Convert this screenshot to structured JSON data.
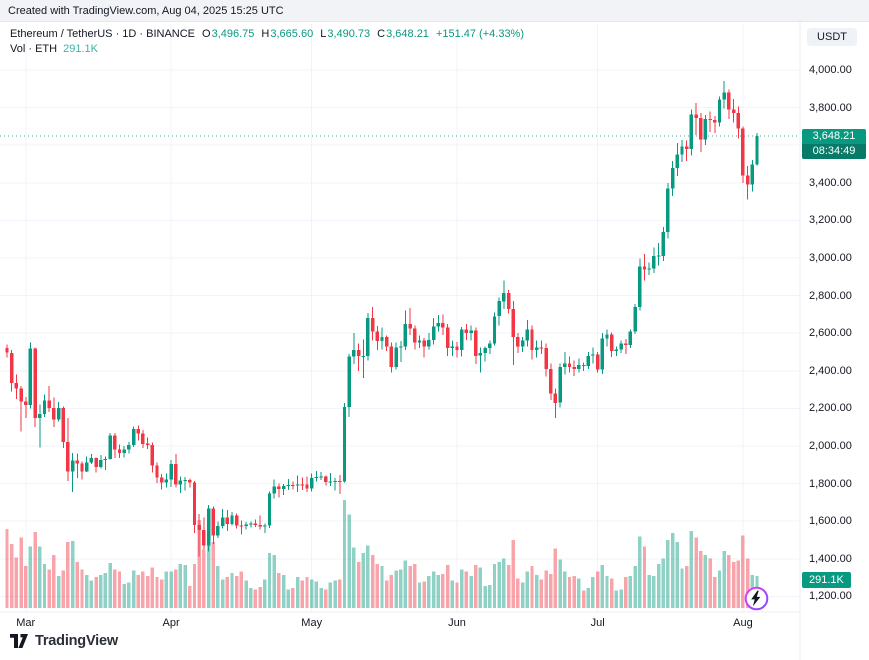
{
  "attribution": "Created with TradingView.com, Aug 04, 2025 15:25 UTC",
  "legend": {
    "title": "Ethereum / TetherUS · 1D · BINANCE",
    "ohlc": [
      {
        "k": "O",
        "v": "3,496.75"
      },
      {
        "k": "H",
        "v": "3,665.60"
      },
      {
        "k": "L",
        "v": "3,490.73"
      },
      {
        "k": "C",
        "v": "3,648.21"
      }
    ],
    "change": "+151.47 (+4.33%)",
    "volume_label": "Vol · ETH",
    "volume_value": "291.1K"
  },
  "axis": {
    "currency": "USDT"
  },
  "price_badge": {
    "price": "3,648.21",
    "countdown": "08:34:49"
  },
  "volume_badge": "291.1K",
  "footer": {
    "logo_text": "TradingView"
  },
  "icons": {
    "bolt": "lightning-bolt",
    "logo": "tradingview-mark"
  },
  "chart_data": {
    "type": "candlestick",
    "symbol": "Ethereum / TetherUS",
    "interval": "1D",
    "exchange": "BINANCE",
    "start_date": "2025-02-25",
    "price_line": 3648.21,
    "last_candle": {
      "open": 3496.75,
      "high": 3665.6,
      "low": 3490.73,
      "close": 3648.21,
      "volume": "291.1K",
      "change": "+151.47 (+4.33%)"
    },
    "colors": {
      "up": "#089981",
      "down": "#f23645",
      "volume_up": "rgba(8,153,129,0.45)",
      "volume_down": "rgba(242,54,69,0.45)"
    },
    "y_axis": {
      "min": 1200,
      "max": 4000,
      "step": 200,
      "ticks": [
        {
          "value": 4000,
          "label": "4,000.00"
        },
        {
          "value": 3800,
          "label": "3,800.00"
        },
        {
          "value": 3600,
          "label": "3,600.00"
        },
        {
          "value": 3400,
          "label": "3,400.00"
        },
        {
          "value": 3200,
          "label": "3,200.00"
        },
        {
          "value": 3000,
          "label": "3,000.00"
        },
        {
          "value": 2800,
          "label": "2,800.00"
        },
        {
          "value": 2600,
          "label": "2,600.00"
        },
        {
          "value": 2400,
          "label": "2,400.00"
        },
        {
          "value": 2200,
          "label": "2,200.00"
        },
        {
          "value": 2000,
          "label": "2,000.00"
        },
        {
          "value": 1800,
          "label": "1,800.00"
        },
        {
          "value": 1600,
          "label": "1,600.00"
        },
        {
          "value": 1400,
          "label": "1,400.00"
        },
        {
          "value": 1200,
          "label": "1,200.00"
        }
      ]
    },
    "x_axis": {
      "ticks": [
        {
          "label": "Mar",
          "index": 4
        },
        {
          "label": "Apr",
          "index": 35
        },
        {
          "label": "May",
          "index": 65
        },
        {
          "label": "Jun",
          "index": 96
        },
        {
          "label": "Jul",
          "index": 126
        },
        {
          "label": "Aug",
          "index": 157
        }
      ]
    },
    "candles_format": [
      "open",
      "high",
      "low",
      "close",
      "volume_k"
    ],
    "candles": [
      [
        2520,
        2540,
        2470,
        2496,
        720
      ],
      [
        2496,
        2510,
        2290,
        2336,
        580
      ],
      [
        2336,
        2380,
        2250,
        2306,
        460
      ],
      [
        2306,
        2320,
        2076,
        2238,
        640
      ],
      [
        2238,
        2260,
        2150,
        2218,
        380
      ],
      [
        2218,
        2550,
        2200,
        2518,
        560
      ],
      [
        2518,
        2523,
        2100,
        2149,
        690
      ],
      [
        2149,
        2222,
        1993,
        2171,
        560
      ],
      [
        2171,
        2273,
        2155,
        2241,
        400
      ],
      [
        2241,
        2319,
        2180,
        2202,
        350
      ],
      [
        2202,
        2258,
        2102,
        2141,
        480
      ],
      [
        2141,
        2235,
        2130,
        2203,
        290
      ],
      [
        2203,
        2211,
        1989,
        2020,
        340
      ],
      [
        2020,
        2149,
        1813,
        1865,
        600
      ],
      [
        1865,
        1963,
        1754,
        1924,
        610
      ],
      [
        1924,
        1960,
        1829,
        1908,
        420
      ],
      [
        1908,
        1917,
        1821,
        1864,
        350
      ],
      [
        1864,
        1945,
        1861,
        1911,
        300
      ],
      [
        1911,
        1957,
        1903,
        1937,
        250
      ],
      [
        1937,
        1940,
        1860,
        1887,
        280
      ],
      [
        1887,
        1952,
        1879,
        1926,
        300
      ],
      [
        1926,
        1944,
        1872,
        1930,
        320
      ],
      [
        1930,
        2069,
        1928,
        2056,
        410
      ],
      [
        2056,
        2070,
        1937,
        1982,
        350
      ],
      [
        1982,
        2009,
        1936,
        1964,
        330
      ],
      [
        1964,
        2001,
        1940,
        1981,
        220
      ],
      [
        1981,
        2022,
        1959,
        2006,
        230
      ],
      [
        2006,
        2103,
        1996,
        2090,
        340
      ],
      [
        2090,
        2109,
        2030,
        2066,
        300
      ],
      [
        2066,
        2085,
        1990,
        2012,
        330
      ],
      [
        2012,
        2045,
        1985,
        2004,
        290
      ],
      [
        2004,
        2018,
        1860,
        1896,
        370
      ],
      [
        1896,
        1912,
        1802,
        1833,
        280
      ],
      [
        1833,
        1850,
        1768,
        1807,
        260
      ],
      [
        1807,
        1853,
        1780,
        1823,
        330
      ],
      [
        1823,
        1926,
        1781,
        1905,
        330
      ],
      [
        1905,
        1957,
        1780,
        1795,
        350
      ],
      [
        1795,
        1839,
        1751,
        1817,
        400
      ],
      [
        1817,
        1836,
        1762,
        1818,
        390
      ],
      [
        1818,
        1827,
        1780,
        1806,
        200
      ],
      [
        1806,
        1813,
        1538,
        1580,
        400
      ],
      [
        1580,
        1639,
        1411,
        1553,
        800
      ],
      [
        1553,
        1620,
        1449,
        1471,
        530
      ],
      [
        1471,
        1687,
        1440,
        1667,
        760
      ],
      [
        1667,
        1678,
        1479,
        1523,
        600
      ],
      [
        1523,
        1598,
        1511,
        1575,
        380
      ],
      [
        1575,
        1666,
        1560,
        1620,
        260
      ],
      [
        1620,
        1659,
        1547,
        1586,
        280
      ],
      [
        1586,
        1650,
        1576,
        1630,
        320
      ],
      [
        1630,
        1642,
        1561,
        1577,
        290
      ],
      [
        1577,
        1604,
        1528,
        1574,
        330
      ],
      [
        1574,
        1596,
        1557,
        1583,
        250
      ],
      [
        1583,
        1599,
        1567,
        1588,
        180
      ],
      [
        1588,
        1608,
        1570,
        1581,
        170
      ],
      [
        1581,
        1629,
        1556,
        1572,
        190
      ],
      [
        1572,
        1589,
        1536,
        1577,
        260
      ],
      [
        1577,
        1757,
        1565,
        1747,
        500
      ],
      [
        1747,
        1823,
        1720,
        1785,
        480
      ],
      [
        1785,
        1800,
        1726,
        1770,
        320
      ],
      [
        1770,
        1798,
        1740,
        1786,
        300
      ],
      [
        1786,
        1824,
        1765,
        1793,
        170
      ],
      [
        1793,
        1810,
        1768,
        1790,
        180
      ],
      [
        1790,
        1843,
        1754,
        1796,
        280
      ],
      [
        1796,
        1833,
        1766,
        1795,
        250
      ],
      [
        1795,
        1837,
        1755,
        1775,
        280
      ],
      [
        1775,
        1855,
        1759,
        1830,
        260
      ],
      [
        1830,
        1868,
        1810,
        1834,
        240
      ],
      [
        1834,
        1861,
        1818,
        1837,
        180
      ],
      [
        1837,
        1844,
        1791,
        1808,
        170
      ],
      [
        1808,
        1857,
        1788,
        1810,
        230
      ],
      [
        1810,
        1830,
        1762,
        1815,
        250
      ],
      [
        1815,
        1845,
        1745,
        1812,
        260
      ],
      [
        1812,
        2230,
        1805,
        2207,
        980
      ],
      [
        2207,
        2490,
        2155,
        2476,
        850
      ],
      [
        2476,
        2600,
        2435,
        2510,
        550
      ],
      [
        2510,
        2545,
        2400,
        2478,
        420
      ],
      [
        2478,
        2567,
        2362,
        2480,
        500
      ],
      [
        2480,
        2707,
        2455,
        2680,
        570
      ],
      [
        2680,
        2740,
        2560,
        2610,
        480
      ],
      [
        2610,
        2638,
        2510,
        2558,
        400
      ],
      [
        2558,
        2629,
        2513,
        2580,
        380
      ],
      [
        2580,
        2589,
        2505,
        2530,
        250
      ],
      [
        2530,
        2550,
        2392,
        2420,
        300
      ],
      [
        2420,
        2550,
        2408,
        2525,
        340
      ],
      [
        2525,
        2559,
        2446,
        2530,
        350
      ],
      [
        2530,
        2720,
        2510,
        2650,
        430
      ],
      [
        2650,
        2735,
        2590,
        2625,
        380
      ],
      [
        2625,
        2640,
        2512,
        2550,
        400
      ],
      [
        2550,
        2587,
        2520,
        2560,
        230
      ],
      [
        2560,
        2575,
        2471,
        2530,
        240
      ],
      [
        2530,
        2600,
        2513,
        2565,
        290
      ],
      [
        2565,
        2680,
        2540,
        2635,
        330
      ],
      [
        2635,
        2698,
        2610,
        2655,
        300
      ],
      [
        2655,
        2700,
        2590,
        2630,
        310
      ],
      [
        2630,
        2648,
        2478,
        2522,
        390
      ],
      [
        2522,
        2560,
        2480,
        2530,
        250
      ],
      [
        2530,
        2553,
        2470,
        2510,
        230
      ],
      [
        2510,
        2633,
        2475,
        2620,
        350
      ],
      [
        2620,
        2650,
        2565,
        2600,
        330
      ],
      [
        2600,
        2640,
        2560,
        2615,
        290
      ],
      [
        2615,
        2629,
        2436,
        2480,
        390
      ],
      [
        2480,
        2525,
        2390,
        2495,
        370
      ],
      [
        2495,
        2530,
        2450,
        2520,
        200
      ],
      [
        2520,
        2560,
        2490,
        2545,
        210
      ],
      [
        2545,
        2710,
        2535,
        2690,
        400
      ],
      [
        2690,
        2790,
        2640,
        2770,
        420
      ],
      [
        2770,
        2880,
        2730,
        2815,
        450
      ],
      [
        2815,
        2830,
        2705,
        2730,
        390
      ],
      [
        2730,
        2770,
        2430,
        2580,
        620
      ],
      [
        2580,
        2600,
        2495,
        2530,
        270
      ],
      [
        2530,
        2580,
        2500,
        2560,
        230
      ],
      [
        2560,
        2670,
        2530,
        2620,
        330
      ],
      [
        2620,
        2640,
        2460,
        2510,
        380
      ],
      [
        2510,
        2560,
        2470,
        2525,
        300
      ],
      [
        2525,
        2560,
        2489,
        2520,
        260
      ],
      [
        2520,
        2545,
        2370,
        2410,
        340
      ],
      [
        2410,
        2440,
        2245,
        2280,
        310
      ],
      [
        2280,
        2305,
        2150,
        2230,
        540
      ],
      [
        2230,
        2440,
        2205,
        2420,
        440
      ],
      [
        2420,
        2500,
        2380,
        2440,
        330
      ],
      [
        2440,
        2475,
        2390,
        2420,
        280
      ],
      [
        2420,
        2455,
        2372,
        2410,
        290
      ],
      [
        2410,
        2465,
        2390,
        2430,
        270
      ],
      [
        2430,
        2445,
        2400,
        2425,
        160
      ],
      [
        2425,
        2500,
        2410,
        2480,
        180
      ],
      [
        2480,
        2525,
        2440,
        2487,
        280
      ],
      [
        2487,
        2500,
        2390,
        2407,
        330
      ],
      [
        2407,
        2601,
        2383,
        2572,
        390
      ],
      [
        2572,
        2620,
        2530,
        2592,
        290
      ],
      [
        2592,
        2603,
        2473,
        2505,
        270
      ],
      [
        2505,
        2530,
        2479,
        2513,
        160
      ],
      [
        2513,
        2560,
        2495,
        2545,
        170
      ],
      [
        2545,
        2568,
        2490,
        2538,
        280
      ],
      [
        2538,
        2620,
        2520,
        2608,
        290
      ],
      [
        2608,
        2755,
        2595,
        2740,
        380
      ],
      [
        2740,
        2998,
        2720,
        2955,
        650
      ],
      [
        2955,
        3020,
        2880,
        2940,
        560
      ],
      [
        2940,
        2975,
        2910,
        2945,
        300
      ],
      [
        2945,
        3055,
        2920,
        3010,
        290
      ],
      [
        3010,
        3080,
        2960,
        3012,
        400
      ],
      [
        3012,
        3165,
        2985,
        3138,
        450
      ],
      [
        3138,
        3400,
        3105,
        3370,
        620
      ],
      [
        3370,
        3515,
        3330,
        3480,
        680
      ],
      [
        3480,
        3613,
        3435,
        3550,
        600
      ],
      [
        3550,
        3628,
        3510,
        3592,
        360
      ],
      [
        3592,
        3625,
        3515,
        3580,
        380
      ],
      [
        3580,
        3790,
        3545,
        3762,
        700
      ],
      [
        3762,
        3825,
        3655,
        3745,
        640
      ],
      [
        3745,
        3770,
        3565,
        3630,
        520
      ],
      [
        3630,
        3760,
        3600,
        3740,
        480
      ],
      [
        3740,
        3780,
        3670,
        3735,
        450
      ],
      [
        3735,
        3755,
        3665,
        3720,
        280
      ],
      [
        3720,
        3860,
        3700,
        3842,
        340
      ],
      [
        3842,
        3941,
        3795,
        3880,
        520
      ],
      [
        3880,
        3895,
        3740,
        3790,
        480
      ],
      [
        3790,
        3845,
        3720,
        3772,
        420
      ],
      [
        3772,
        3805,
        3635,
        3690,
        430
      ],
      [
        3690,
        3700,
        3400,
        3440,
        660
      ],
      [
        3440,
        3490,
        3310,
        3390,
        450
      ],
      [
        3390,
        3520,
        3355,
        3497,
        300
      ],
      [
        3496.75,
        3665.6,
        3490.73,
        3648.21,
        291.1
      ]
    ]
  }
}
